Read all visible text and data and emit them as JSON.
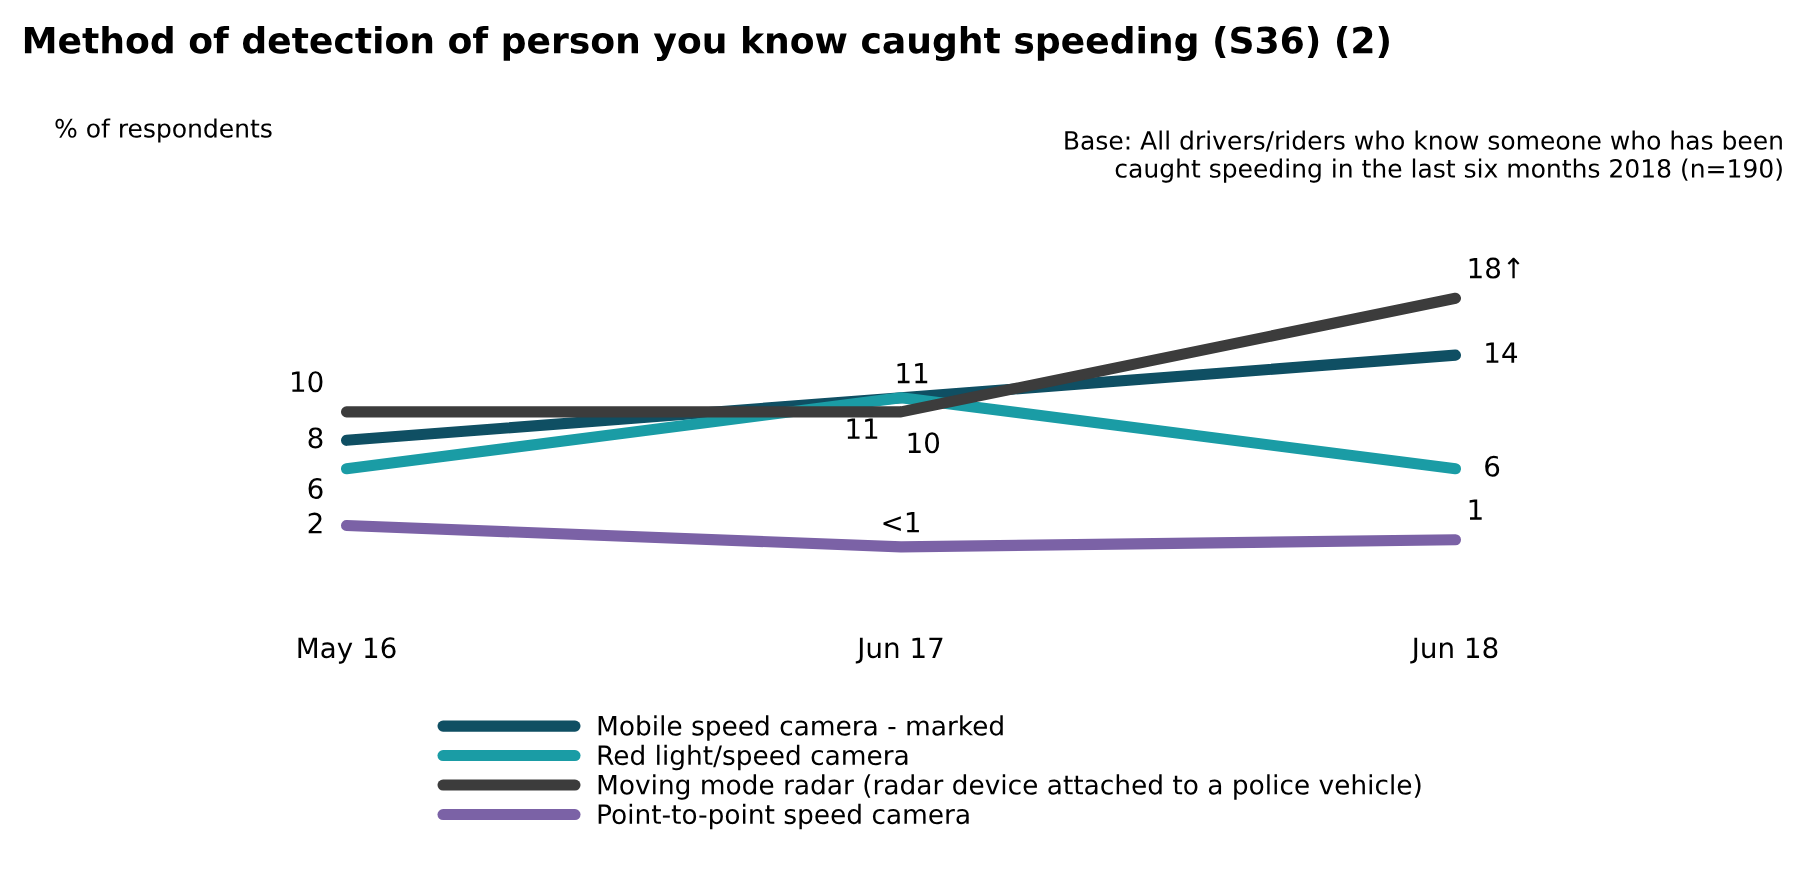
{
  "chart_data": {
    "type": "line",
    "title": "Method of detection of person you know caught speeding (S36) (2)",
    "annotations": [
      "% of respondents",
      "Base: All drivers/riders who know someone who has been\ncaught speeding in the last six months 2018 (n=190)"
    ],
    "categories": [
      "May 16",
      "Jun 17",
      "Jun 18"
    ],
    "legend": "bottom",
    "grid": false,
    "marker": "none",
    "series": [
      {
        "name": "Mobile speed camera - marked",
        "color": "#0f4f63",
        "values": [
          8,
          11,
          14
        ],
        "value_labels": [
          "8",
          "11",
          "14"
        ]
      },
      {
        "name": "Red light/speed camera",
        "color": "#1a9ca5",
        "values": [
          6,
          11,
          6
        ],
        "value_labels": [
          "6",
          "11",
          "6"
        ]
      },
      {
        "name": "Moving mode radar (radar device attached to a police vehicle)",
        "color": "#3c3c3c",
        "values": [
          10,
          10,
          18
        ],
        "value_labels": [
          "10",
          "10",
          "18↑"
        ]
      },
      {
        "name": "Point-to-point speed camera",
        "color": "#7b62a6",
        "values": [
          2,
          0.5,
          1
        ],
        "value_labels": [
          "2",
          "<1",
          "1"
        ]
      }
    ]
  }
}
